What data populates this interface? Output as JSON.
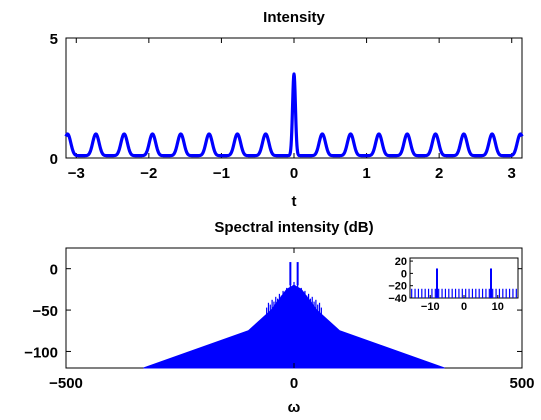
{
  "chart_data": [
    {
      "type": "line",
      "title": "Intensity",
      "xlabel": "t",
      "ylabel": "",
      "xlim": [
        -3.1416,
        3.1416
      ],
      "ylim": [
        0,
        5
      ],
      "xticks": [
        -3,
        -2,
        -1,
        0,
        1,
        2,
        3
      ],
      "xtick_labels": [
        "−3",
        "−2",
        "−1",
        "0",
        "1",
        "2",
        "3"
      ],
      "yticks": [
        0,
        5
      ],
      "ytick_labels": [
        "0",
        "5"
      ],
      "grid": false,
      "series": [
        {
          "color": "#0000ff",
          "description_values": {
            "pulse_period": 0.39,
            "background_peak": 1.0,
            "background_min": 0.1,
            "central_peak_t": 0,
            "central_peak_value": 3.5
          },
          "x": [
            -3.1416,
            -2.7489,
            -2.3562,
            -1.9635,
            -1.5708,
            -1.1781,
            -0.7854,
            -0.3927,
            0,
            0.3927,
            0.7854,
            1.1781,
            1.5708,
            1.9635,
            2.3562,
            2.7489,
            3.1416
          ],
          "y": [
            1.0,
            1.0,
            1.0,
            1.0,
            1.0,
            1.0,
            1.0,
            1.0,
            3.5,
            1.0,
            1.0,
            1.0,
            1.0,
            1.0,
            1.0,
            1.0,
            1.0
          ]
        }
      ]
    },
    {
      "type": "bar",
      "title": "Spectral intensity (dB)",
      "xlabel": "ω",
      "ylabel": "",
      "xlim": [
        -500,
        500
      ],
      "ylim": [
        -120,
        25
      ],
      "xticks": [
        -500,
        0,
        500
      ],
      "xtick_labels": [
        "−500",
        "0",
        "500"
      ],
      "yticks": [
        -100,
        -50,
        0
      ],
      "ytick_labels": [
        "−100",
        "−50",
        "0"
      ],
      "grid": false,
      "series": [
        {
          "color": "#0000ff",
          "envelope": {
            "x": [
              -330,
              -100,
              -50,
              -16,
              0,
              16,
              50,
              100,
              330
            ],
            "y": [
              -120,
              -75,
              -50,
              -25,
              -20,
              -25,
              -50,
              -75,
              -120
            ]
          },
          "peaks": {
            "x": [
              -8,
              8
            ],
            "y": [
              8,
              8
            ]
          }
        }
      ],
      "inset": {
        "type": "bar",
        "xlim": [
          -16,
          16
        ],
        "ylim": [
          -40,
          25
        ],
        "xticks": [
          -10,
          0,
          10
        ],
        "xtick_labels": [
          "−10",
          "0",
          "10"
        ],
        "yticks": [
          -40,
          -20,
          0,
          20
        ],
        "ytick_labels": [
          "−40",
          "−20",
          "0",
          "20"
        ],
        "baseline_level": -25,
        "spacing": 1,
        "peaks": {
          "x": [
            -8,
            8
          ],
          "y": [
            8,
            8
          ]
        }
      }
    }
  ]
}
